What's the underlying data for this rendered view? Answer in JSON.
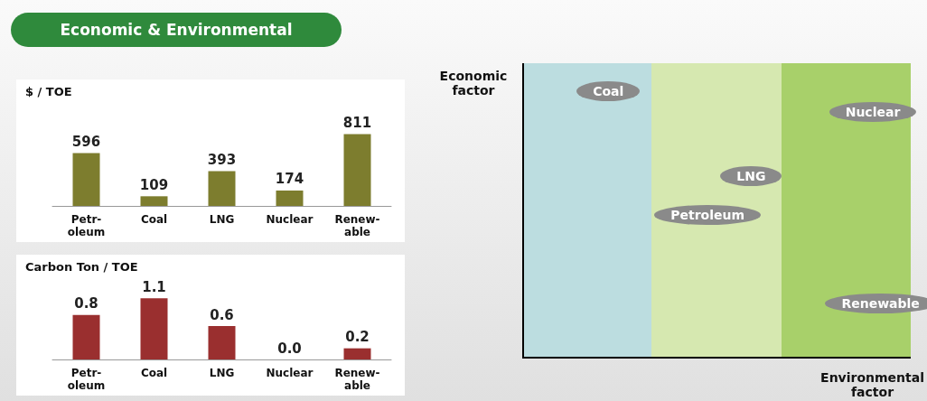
{
  "chart_data": [
    {
      "type": "bar",
      "title": "Economic & Environmental",
      "ylabel": "$ / TOE",
      "categories": [
        "Petr-\noleum",
        "Coal",
        "LNG",
        "Nuclear",
        "Renew-\nable"
      ],
      "values": [
        596,
        109,
        393,
        174,
        811
      ],
      "color": "#7d7d2e",
      "data_labels": true,
      "tick_labels": "x"
    },
    {
      "type": "bar",
      "ylabel": "Carbon Ton / TOE",
      "categories": [
        "Petr-\noleum",
        "Coal",
        "LNG",
        "Nuclear",
        "Renew-\nable"
      ],
      "values": [
        0.8,
        1.1,
        0.6,
        0.0,
        0.2
      ],
      "value_labels": [
        "0.8",
        "1.1",
        "0.6",
        "0.0",
        "0.2"
      ],
      "color": "#9a2f2f",
      "tick_labels": "x"
    },
    {
      "type": "other",
      "xlabel": "Environmental\nfactor",
      "ylabel": "Economic\nfactor",
      "annotations": [
        "Coal",
        "Nuclear",
        "LNG",
        "Petroleum",
        "Renewable"
      ]
    }
  ]
}
